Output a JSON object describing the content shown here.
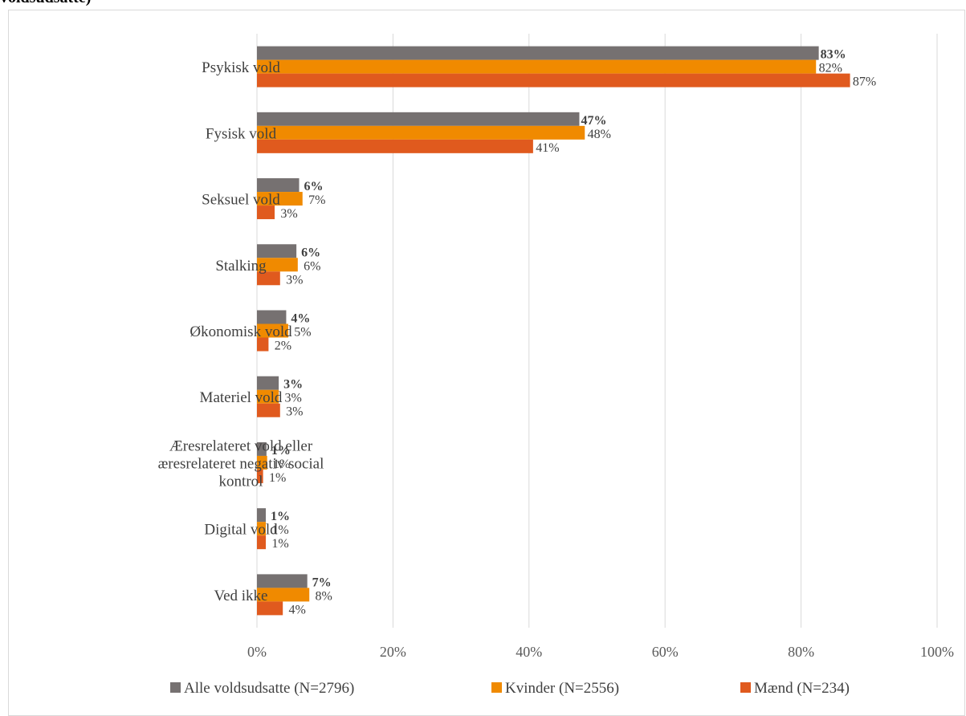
{
  "chart_data": {
    "type": "bar",
    "orientation": "horizontal",
    "title": "voldsudsatte)",
    "categories": [
      "Psykisk vold",
      "Fysisk vold",
      "Seksuel vold",
      "Stalking",
      "Økonomisk vold",
      "Materiel vold",
      "Æresrelateret vold eller æresrelateret negativ social kontrol",
      "Digital vold",
      "Ved ikke"
    ],
    "category_lines": [
      [
        "Psykisk vold"
      ],
      [
        "Fysisk vold"
      ],
      [
        "Seksuel vold"
      ],
      [
        "Stalking"
      ],
      [
        "Økonomisk vold"
      ],
      [
        "Materiel vold"
      ],
      [
        "Æresrelateret vold eller",
        "æresrelateret negativ social",
        "kontrol"
      ],
      [
        "Digital vold"
      ],
      [
        "Ved ikke"
      ]
    ],
    "series": [
      {
        "name": "Alle voldsudsatte (N=2796)",
        "color": "#767171",
        "values": [
          82.6,
          47.4,
          6.2,
          5.8,
          4.3,
          3.2,
          1.4,
          1.3,
          7.4
        ],
        "labels": [
          "83%",
          "47%",
          "6%",
          "6%",
          "4%",
          "3%",
          "1%",
          "1%",
          "7%"
        ]
      },
      {
        "name": "Kvinder (N=2556)",
        "color": "#F08A00",
        "values": [
          82.2,
          48.2,
          6.7,
          6.0,
          4.6,
          3.2,
          1.5,
          1.3,
          7.7
        ],
        "labels": [
          "82%",
          "48%",
          "7%",
          "6%",
          "5%",
          "3%",
          "1%",
          "1%",
          "8%"
        ]
      },
      {
        "name": "Mænd (N=234)",
        "color": "#E05A1E",
        "values": [
          87.2,
          40.6,
          2.6,
          3.4,
          1.7,
          3.4,
          0.9,
          1.3,
          3.8
        ],
        "labels": [
          "87%",
          "41%",
          "3%",
          "3%",
          "2%",
          "3%",
          "1%",
          "1%",
          "4%"
        ]
      }
    ],
    "xlim": [
      0,
      100
    ],
    "xticks": [
      "0%",
      "20%",
      "40%",
      "60%",
      "80%",
      "100%"
    ],
    "grid": true,
    "legend": "bottom"
  }
}
